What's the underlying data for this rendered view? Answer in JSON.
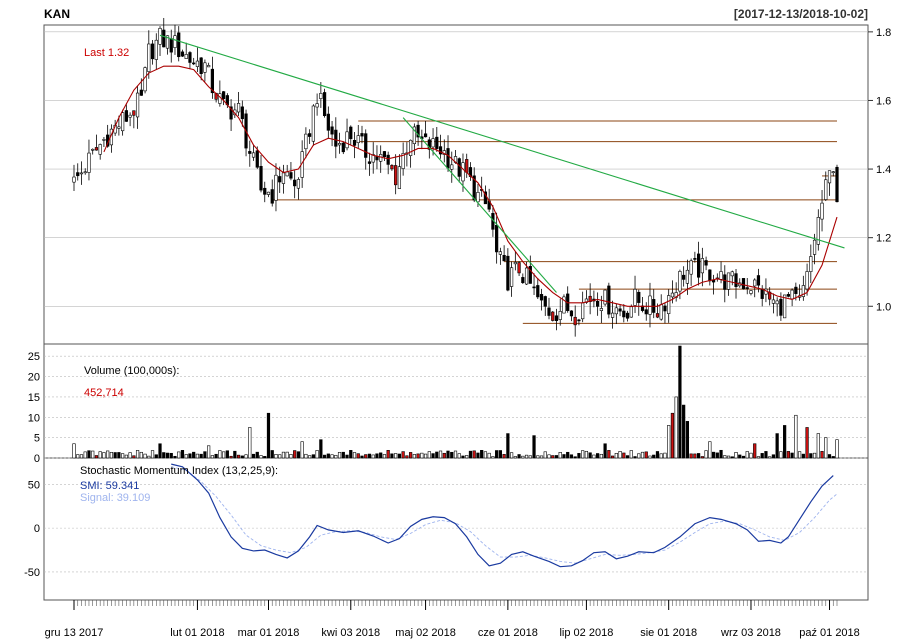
{
  "header": {
    "symbol": "KAN",
    "date_range": "[2017-12-13/2018-10-02]"
  },
  "colors": {
    "up_candle": "#ffffff",
    "down_candle": "#000000",
    "reversal_candle": "#cc1111",
    "moving_average": "#aa0000",
    "trend_line": "#22aa44",
    "support_resistance": "#8b4513",
    "smi": "#1a3aa0",
    "signal": "#9fb4ee",
    "grid": "#bbbbbb",
    "last_label": "#cc0000"
  },
  "x_axis": {
    "tick_labels": [
      "gru 13 2017",
      "lut 01 2018",
      "mar 01 2018",
      "kwi 03 2018",
      "maj 02 2018",
      "cze 01 2018",
      "lip 02 2018",
      "sie 01 2018",
      "wrz 03 2018",
      "paź 01 2018"
    ],
    "tick_sessions": [
      0,
      33,
      52,
      74,
      94,
      116,
      137,
      159,
      181,
      202
    ],
    "total_sessions": 204
  },
  "chart_data": [
    {
      "type": "candlestick",
      "panel": "price",
      "last_label": "Last 1.32",
      "ylim": [
        0.89,
        1.82
      ],
      "yticks": [
        1.0,
        1.2,
        1.4,
        1.6,
        1.8
      ],
      "ytick_labels": [
        "1.0",
        "1.2",
        "1.4",
        "1.6",
        "1.8"
      ],
      "grid": true,
      "close_path": [
        [
          0,
          1.36
        ],
        [
          5,
          1.44
        ],
        [
          9,
          1.5
        ],
        [
          14,
          1.55
        ],
        [
          18,
          1.6
        ],
        [
          20,
          1.74
        ],
        [
          23,
          1.78
        ],
        [
          27,
          1.76
        ],
        [
          31,
          1.72
        ],
        [
          35,
          1.7
        ],
        [
          37,
          1.64
        ],
        [
          40,
          1.58
        ],
        [
          44,
          1.57
        ],
        [
          47,
          1.45
        ],
        [
          50,
          1.34
        ],
        [
          53,
          1.33
        ],
        [
          56,
          1.4
        ],
        [
          59,
          1.35
        ],
        [
          61,
          1.42
        ],
        [
          63,
          1.52
        ],
        [
          65,
          1.62
        ],
        [
          68,
          1.52
        ],
        [
          70,
          1.47
        ],
        [
          74,
          1.5
        ],
        [
          78,
          1.45
        ],
        [
          82,
          1.43
        ],
        [
          86,
          1.38
        ],
        [
          90,
          1.5
        ],
        [
          94,
          1.47
        ],
        [
          98,
          1.46
        ],
        [
          102,
          1.41
        ],
        [
          105,
          1.38
        ],
        [
          108,
          1.32
        ],
        [
          111,
          1.28
        ],
        [
          113,
          1.15
        ],
        [
          116,
          1.08
        ],
        [
          119,
          1.11
        ],
        [
          122,
          1.06
        ],
        [
          125,
          1.0
        ],
        [
          128,
          0.98
        ],
        [
          131,
          1.0
        ],
        [
          134,
          0.98
        ],
        [
          137,
          1.02
        ],
        [
          140,
          1.03
        ],
        [
          144,
          1.0
        ],
        [
          147,
          0.98
        ],
        [
          150,
          1.02
        ],
        [
          153,
          1.0
        ],
        [
          156,
          0.99
        ],
        [
          159,
          1.03
        ],
        [
          163,
          1.1
        ],
        [
          167,
          1.11
        ],
        [
          170,
          1.1
        ],
        [
          173,
          1.08
        ],
        [
          176,
          1.07
        ],
        [
          179,
          1.07
        ],
        [
          182,
          1.06
        ],
        [
          185,
          1.03
        ],
        [
          188,
          1.0
        ],
        [
          191,
          1.02
        ],
        [
          194,
          1.01
        ],
        [
          196,
          1.08
        ],
        [
          198,
          1.2
        ],
        [
          200,
          1.3
        ],
        [
          202,
          1.38
        ],
        [
          203,
          1.42
        ],
        [
          204,
          1.32
        ]
      ],
      "moving_average_path": [
        [
          8,
          1.45
        ],
        [
          12,
          1.55
        ],
        [
          16,
          1.63
        ],
        [
          20,
          1.68
        ],
        [
          24,
          1.7
        ],
        [
          28,
          1.7
        ],
        [
          32,
          1.69
        ],
        [
          36,
          1.64
        ],
        [
          40,
          1.6
        ],
        [
          44,
          1.55
        ],
        [
          48,
          1.47
        ],
        [
          52,
          1.42
        ],
        [
          56,
          1.39
        ],
        [
          60,
          1.4
        ],
        [
          64,
          1.47
        ],
        [
          68,
          1.49
        ],
        [
          72,
          1.48
        ],
        [
          76,
          1.46
        ],
        [
          80,
          1.44
        ],
        [
          84,
          1.43
        ],
        [
          88,
          1.44
        ],
        [
          92,
          1.46
        ],
        [
          96,
          1.46
        ],
        [
          100,
          1.44
        ],
        [
          104,
          1.4
        ],
        [
          108,
          1.36
        ],
        [
          112,
          1.29
        ],
        [
          116,
          1.19
        ],
        [
          120,
          1.13
        ],
        [
          124,
          1.08
        ],
        [
          128,
          1.04
        ],
        [
          132,
          1.01
        ],
        [
          136,
          1.01
        ],
        [
          140,
          1.02
        ],
        [
          144,
          1.01
        ],
        [
          148,
          1.0
        ],
        [
          152,
          1.0
        ],
        [
          156,
          1.0
        ],
        [
          160,
          1.02
        ],
        [
          164,
          1.05
        ],
        [
          168,
          1.07
        ],
        [
          172,
          1.08
        ],
        [
          176,
          1.07
        ],
        [
          180,
          1.06
        ],
        [
          184,
          1.05
        ],
        [
          188,
          1.03
        ],
        [
          192,
          1.02
        ],
        [
          196,
          1.04
        ],
        [
          200,
          1.12
        ],
        [
          204,
          1.26
        ]
      ],
      "trend_lines": [
        {
          "from": [
            23,
            1.79
          ],
          "to": [
            206,
            1.17
          ]
        },
        {
          "from": [
            88,
            1.55
          ],
          "to": [
            129,
            1.04
          ]
        }
      ],
      "support_resistance_lines": [
        {
          "from": [
            76,
            1.54
          ],
          "to": [
            204,
            1.54
          ]
        },
        {
          "from": [
            76,
            1.48
          ],
          "to": [
            204,
            1.48
          ]
        },
        {
          "from": [
            53,
            1.31
          ],
          "to": [
            204,
            1.31
          ]
        },
        {
          "from": [
            115,
            1.13
          ],
          "to": [
            204,
            1.13
          ]
        },
        {
          "from": [
            135,
            1.05
          ],
          "to": [
            204,
            1.05
          ]
        },
        {
          "from": [
            120,
            0.95
          ],
          "to": [
            204,
            0.95
          ]
        },
        {
          "from": [
            200,
            1.38
          ],
          "to": [
            204,
            1.38
          ]
        }
      ]
    },
    {
      "type": "bar",
      "panel": "volume",
      "title": "Volume (100,000s):",
      "last_value_label": "452,714",
      "ylim": [
        0,
        28
      ],
      "yticks": [
        0,
        5,
        10,
        15,
        20,
        25
      ],
      "ytick_labels": [
        "0",
        "5",
        "10",
        "15",
        "20",
        "25"
      ],
      "last_value": 4.53,
      "peaks": [
        [
          0,
          3.5
        ],
        [
          23,
          3.5
        ],
        [
          36,
          3.0
        ],
        [
          47,
          7.5
        ],
        [
          52,
          11.0
        ],
        [
          61,
          4.0
        ],
        [
          66,
          4.5
        ],
        [
          116,
          6.0
        ],
        [
          123,
          5.5
        ],
        [
          142,
          3.5
        ],
        [
          159,
          8.0
        ],
        [
          160,
          11.0
        ],
        [
          161,
          15.0
        ],
        [
          162,
          27.5
        ],
        [
          163,
          13.0
        ],
        [
          164,
          9.0
        ],
        [
          170,
          4.0
        ],
        [
          182,
          3.5
        ],
        [
          188,
          6.0
        ],
        [
          190,
          8.0
        ],
        [
          193,
          10.5
        ],
        [
          196,
          7.5
        ],
        [
          199,
          6.0
        ],
        [
          201,
          5.0
        ],
        [
          204,
          4.5
        ]
      ],
      "baseline_level": 1.0
    },
    {
      "type": "line",
      "panel": "oscillator",
      "title": "Stochastic Momentum Index (13,2,25,9):",
      "smi_label": "SMI: 59.341",
      "signal_label": "Signal: 39.109",
      "ylim": [
        -82,
        80
      ],
      "yticks": [
        50,
        0,
        -50
      ],
      "ytick_labels": [
        "50",
        "0",
        "-50"
      ],
      "smi": [
        [
          26,
          73
        ],
        [
          29,
          70
        ],
        [
          33,
          55
        ],
        [
          36,
          40
        ],
        [
          39,
          12
        ],
        [
          42,
          -10
        ],
        [
          45,
          -23
        ],
        [
          48,
          -26
        ],
        [
          51,
          -25
        ],
        [
          54,
          -30
        ],
        [
          57,
          -34
        ],
        [
          60,
          -26
        ],
        [
          63,
          -10
        ],
        [
          65,
          3
        ],
        [
          68,
          -2
        ],
        [
          72,
          -5
        ],
        [
          76,
          -3
        ],
        [
          80,
          -9
        ],
        [
          84,
          -17
        ],
        [
          87,
          -12
        ],
        [
          90,
          2
        ],
        [
          93,
          10
        ],
        [
          96,
          13
        ],
        [
          99,
          12
        ],
        [
          102,
          5
        ],
        [
          105,
          -10
        ],
        [
          108,
          -30
        ],
        [
          111,
          -43
        ],
        [
          114,
          -40
        ],
        [
          117,
          -30
        ],
        [
          120,
          -27
        ],
        [
          123,
          -32
        ],
        [
          127,
          -38
        ],
        [
          130,
          -44
        ],
        [
          133,
          -43
        ],
        [
          136,
          -37
        ],
        [
          139,
          -28
        ],
        [
          142,
          -27
        ],
        [
          145,
          -35
        ],
        [
          148,
          -32
        ],
        [
          151,
          -27
        ],
        [
          155,
          -28
        ],
        [
          158,
          -22
        ],
        [
          162,
          -10
        ],
        [
          166,
          5
        ],
        [
          170,
          12
        ],
        [
          173,
          10
        ],
        [
          177,
          5
        ],
        [
          180,
          -2
        ],
        [
          183,
          -15
        ],
        [
          186,
          -14
        ],
        [
          189,
          -17
        ],
        [
          191,
          -10
        ],
        [
          194,
          10
        ],
        [
          197,
          30
        ],
        [
          200,
          48
        ],
        [
          203,
          60
        ]
      ],
      "signal": [
        [
          26,
          70
        ],
        [
          30,
          66
        ],
        [
          34,
          53
        ],
        [
          38,
          36
        ],
        [
          42,
          15
        ],
        [
          46,
          -8
        ],
        [
          50,
          -20
        ],
        [
          54,
          -25
        ],
        [
          58,
          -28
        ],
        [
          62,
          -22
        ],
        [
          66,
          -8
        ],
        [
          70,
          -4
        ],
        [
          74,
          -3
        ],
        [
          78,
          -5
        ],
        [
          82,
          -10
        ],
        [
          86,
          -13
        ],
        [
          90,
          -6
        ],
        [
          94,
          4
        ],
        [
          98,
          9
        ],
        [
          102,
          6
        ],
        [
          106,
          -4
        ],
        [
          110,
          -20
        ],
        [
          114,
          -33
        ],
        [
          118,
          -33
        ],
        [
          122,
          -31
        ],
        [
          126,
          -34
        ],
        [
          130,
          -38
        ],
        [
          134,
          -40
        ],
        [
          138,
          -35
        ],
        [
          142,
          -30
        ],
        [
          146,
          -31
        ],
        [
          150,
          -30
        ],
        [
          154,
          -28
        ],
        [
          158,
          -25
        ],
        [
          162,
          -16
        ],
        [
          166,
          -5
        ],
        [
          170,
          5
        ],
        [
          174,
          8
        ],
        [
          178,
          5
        ],
        [
          182,
          -2
        ],
        [
          186,
          -10
        ],
        [
          190,
          -14
        ],
        [
          194,
          -5
        ],
        [
          198,
          12
        ],
        [
          202,
          32
        ],
        [
          204,
          39
        ]
      ]
    }
  ]
}
